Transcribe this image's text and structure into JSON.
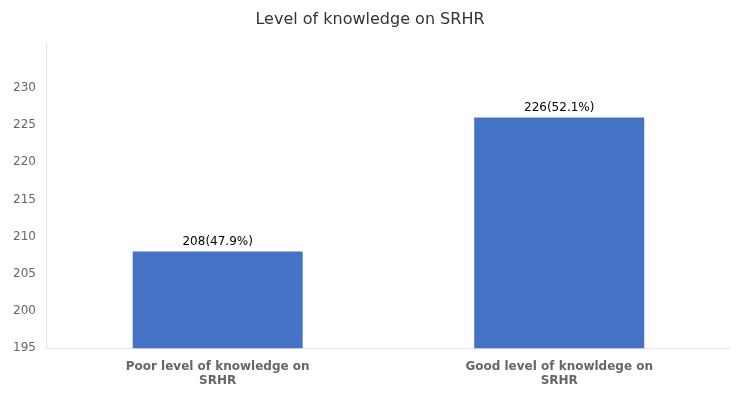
{
  "chart_data": {
    "type": "bar",
    "title": "Level of knowledge on SRHR",
    "categories": [
      "Poor level of knowledge on\nSRHR",
      "Good level of knowldege on\nSRHR"
    ],
    "values": [
      208,
      226
    ],
    "value_labels": [
      "208(47.9%)",
      "226(52.1%)"
    ],
    "data_labels": true,
    "color": "#4472c4",
    "ylim": [
      195,
      236
    ],
    "yticks": [
      195,
      200,
      205,
      210,
      215,
      220,
      225,
      230
    ],
    "grid": false
  }
}
